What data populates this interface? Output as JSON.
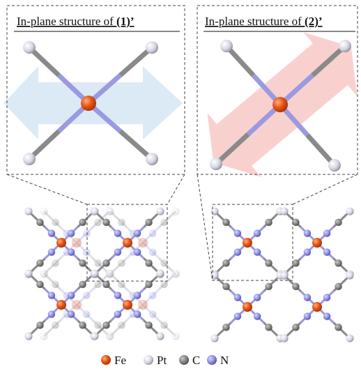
{
  "panels": [
    {
      "title_prefix": "In-plane structure of ",
      "title_label": "(1)’"
    },
    {
      "title_prefix": "In-plane structure of ",
      "title_label": "(2)’"
    }
  ],
  "legend": [
    {
      "label": "Fe"
    },
    {
      "label": "Pt"
    },
    {
      "label": "C"
    },
    {
      "label": "N"
    }
  ]
}
